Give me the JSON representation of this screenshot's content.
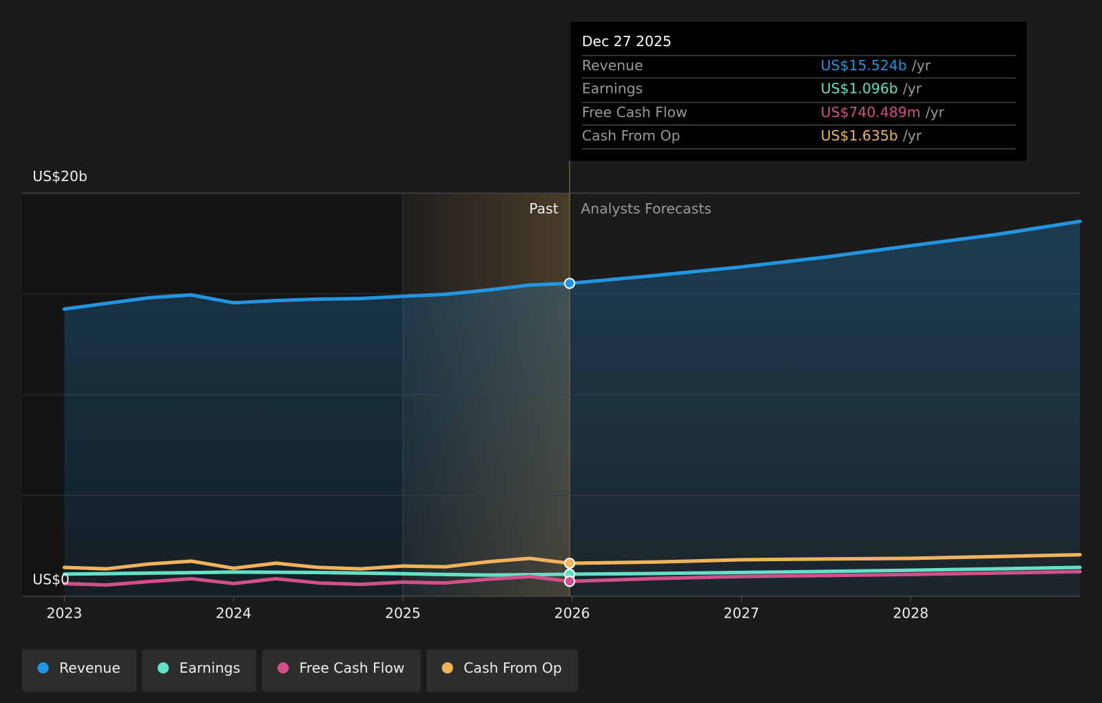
{
  "chart_data": {
    "type": "line",
    "x": [
      2023,
      2023.25,
      2023.5,
      2023.75,
      2024,
      2024.25,
      2024.5,
      2024.75,
      2025,
      2025.25,
      2025.5,
      2025.75,
      2025.985,
      2026.5,
      2027,
      2027.5,
      2028,
      2028.5,
      2029
    ],
    "xlim": [
      2022.75,
      2029.0
    ],
    "xticks": [
      2023,
      2024,
      2025,
      2026,
      2027,
      2028
    ],
    "ylim": [
      0,
      20
    ],
    "yticks": [
      {
        "value": 0,
        "label": "US$0"
      },
      {
        "value": 20,
        "label": "US$20b"
      }
    ],
    "ygrid": [
      5,
      10,
      15
    ],
    "series": [
      {
        "name": "Revenue",
        "color": "#2394df",
        "values": [
          14.25,
          14.53,
          14.81,
          14.95,
          14.56,
          14.67,
          14.74,
          14.77,
          14.88,
          14.98,
          15.19,
          15.44,
          15.524,
          15.92,
          16.34,
          16.83,
          17.39,
          17.94,
          18.6
        ]
      },
      {
        "name": "Earnings",
        "color": "#65e0c6",
        "values": [
          1.1,
          1.12,
          1.15,
          1.17,
          1.2,
          1.19,
          1.18,
          1.15,
          1.12,
          1.08,
          1.05,
          1.07,
          1.096,
          1.13,
          1.18,
          1.23,
          1.29,
          1.36,
          1.43
        ]
      },
      {
        "name": "Free Cash Flow",
        "color": "#d2508a",
        "values": [
          0.63,
          0.56,
          0.73,
          0.87,
          0.63,
          0.87,
          0.66,
          0.59,
          0.7,
          0.66,
          0.84,
          0.98,
          0.74,
          0.88,
          0.98,
          1.03,
          1.08,
          1.15,
          1.22
        ]
      },
      {
        "name": "Cash From Op",
        "color": "#f0b35c",
        "values": [
          1.43,
          1.36,
          1.6,
          1.74,
          1.39,
          1.64,
          1.43,
          1.36,
          1.5,
          1.46,
          1.71,
          1.88,
          1.635,
          1.7,
          1.81,
          1.85,
          1.88,
          1.97,
          2.06
        ]
      }
    ],
    "past_label": "Past",
    "forecast_label": "Analysts Forecasts",
    "tooltip": {
      "date": "Dec 27 2025",
      "values": [
        "US$15.524b",
        "US$1.096b",
        "US$740.489m",
        "US$1.635b"
      ],
      "unit": "/yr"
    }
  }
}
